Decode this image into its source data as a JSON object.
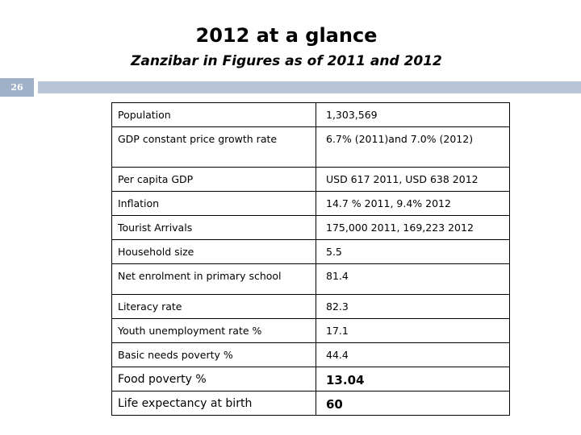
{
  "title": "2012 at a glance",
  "subtitle": "Zanzibar in Figures as of 2011 and 2012",
  "slide_number": "26",
  "accent_colors": {
    "number_box": "#9fb0c9",
    "strip": "#b8c5d8"
  },
  "rows": [
    {
      "label": "Population",
      "value": "1,303,569"
    },
    {
      "label": "GDP constant price growth rate",
      "value": "6.7% (2011)and  7.0% (2012)"
    },
    {
      "label": "Per capita GDP",
      "value": "USD 617 2011, USD 638 2012"
    },
    {
      "label": "Inflation",
      "value": "14.7 %  2011,  9.4% 2012"
    },
    {
      "label": "Tourist Arrivals",
      "value": "175,000 2011,  169,223 2012"
    },
    {
      "label": "Household size",
      "value": "5.5"
    },
    {
      "label": "Net enrolment in primary school",
      "value": "81.4"
    },
    {
      "label": "Literacy rate",
      "value": "82.3"
    },
    {
      "label": "Youth unemployment rate  %",
      "value": "17.1"
    },
    {
      "label": "Basic needs poverty %",
      "value": "44.4"
    },
    {
      "label": "Food poverty %",
      "value": "13.04"
    },
    {
      "label": "Life expectancy at birth",
      "value": "60"
    }
  ]
}
